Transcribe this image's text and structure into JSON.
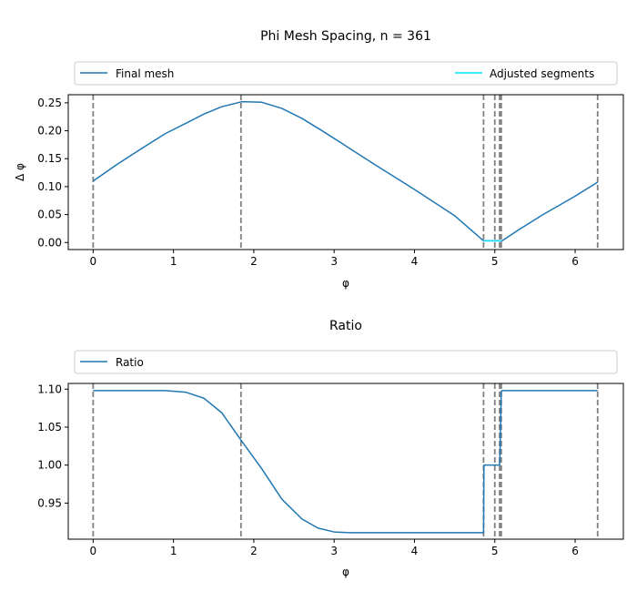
{
  "figure": {
    "background": "#ffffff"
  },
  "colors": {
    "series_main": "#1f77b4",
    "series_adjusted": "#00e5ff",
    "vline": "#808080",
    "axes": "#000000",
    "legend_border": "#cccccc"
  },
  "chart_data": [
    {
      "type": "line",
      "title": "Phi Mesh Spacing, n = 361",
      "xlabel": "φ",
      "ylabel": "Δ φ",
      "xlim": [
        -0.31,
        6.6
      ],
      "ylim": [
        -0.0126,
        0.2645
      ],
      "xticks": [
        0,
        1,
        2,
        3,
        4,
        5,
        6
      ],
      "xtick_labels": [
        "0",
        "1",
        "2",
        "3",
        "4",
        "5",
        "6"
      ],
      "yticks": [
        0.0,
        0.05,
        0.1,
        0.15,
        0.2,
        0.25
      ],
      "ytick_labels": [
        "0.00",
        "0.05",
        "0.10",
        "0.15",
        "0.20",
        "0.25"
      ],
      "grid": false,
      "legend_position": "above, expanded",
      "series": [
        {
          "name": "Final mesh",
          "x": [
            0.0,
            0.3,
            0.6,
            0.9,
            1.15,
            1.38,
            1.6,
            1.85,
            2.1,
            2.35,
            2.6,
            2.85,
            3.1,
            3.5,
            4.0,
            4.5,
            4.86,
            5.0,
            5.06,
            5.08,
            5.3,
            5.6,
            6.0,
            6.28
          ],
          "y": [
            0.11,
            0.14,
            0.168,
            0.195,
            0.213,
            0.23,
            0.243,
            0.252,
            0.251,
            0.24,
            0.222,
            0.2,
            0.177,
            0.14,
            0.095,
            0.048,
            0.003,
            0.003,
            0.003,
            0.002,
            0.023,
            0.05,
            0.083,
            0.108
          ]
        },
        {
          "name": "Adjusted segments",
          "x": [
            4.86,
            5.0,
            5.08
          ],
          "y": [
            0.003,
            0.003,
            0.003
          ]
        }
      ],
      "vertical_lines": [
        0.0,
        1.84,
        4.86,
        5.0,
        5.06,
        5.08,
        6.28
      ]
    },
    {
      "type": "line",
      "title": "Ratio",
      "xlabel": "φ",
      "ylabel": "",
      "xlim": [
        -0.31,
        6.6
      ],
      "ylim": [
        0.9025,
        1.1075
      ],
      "xticks": [
        0,
        1,
        2,
        3,
        4,
        5,
        6
      ],
      "xtick_labels": [
        "0",
        "1",
        "2",
        "3",
        "4",
        "5",
        "6"
      ],
      "yticks": [
        0.95,
        1.0,
        1.05,
        1.1
      ],
      "ytick_labels": [
        "0.95",
        "1.00",
        "1.05",
        "1.10"
      ],
      "grid": false,
      "legend_position": "above, expanded",
      "series": [
        {
          "name": "Ratio",
          "x": [
            0.0,
            0.3,
            0.6,
            0.9,
            1.15,
            1.38,
            1.6,
            1.84,
            2.1,
            2.35,
            2.6,
            2.8,
            3.0,
            3.2,
            3.6,
            4.0,
            4.5,
            4.86,
            4.865,
            5.0,
            5.06,
            5.065,
            5.08,
            5.09,
            5.3,
            5.6,
            6.0,
            6.28
          ],
          "y": [
            1.098,
            1.098,
            1.098,
            1.098,
            1.096,
            1.088,
            1.069,
            1.033,
            0.995,
            0.955,
            0.929,
            0.917,
            0.912,
            0.911,
            0.911,
            0.911,
            0.911,
            0.911,
            1.0,
            1.0,
            1.0,
            1.015,
            1.097,
            1.098,
            1.098,
            1.098,
            1.098,
            1.098
          ]
        }
      ],
      "vertical_lines": [
        0.0,
        1.84,
        4.86,
        5.0,
        5.06,
        5.08,
        6.28
      ]
    }
  ]
}
